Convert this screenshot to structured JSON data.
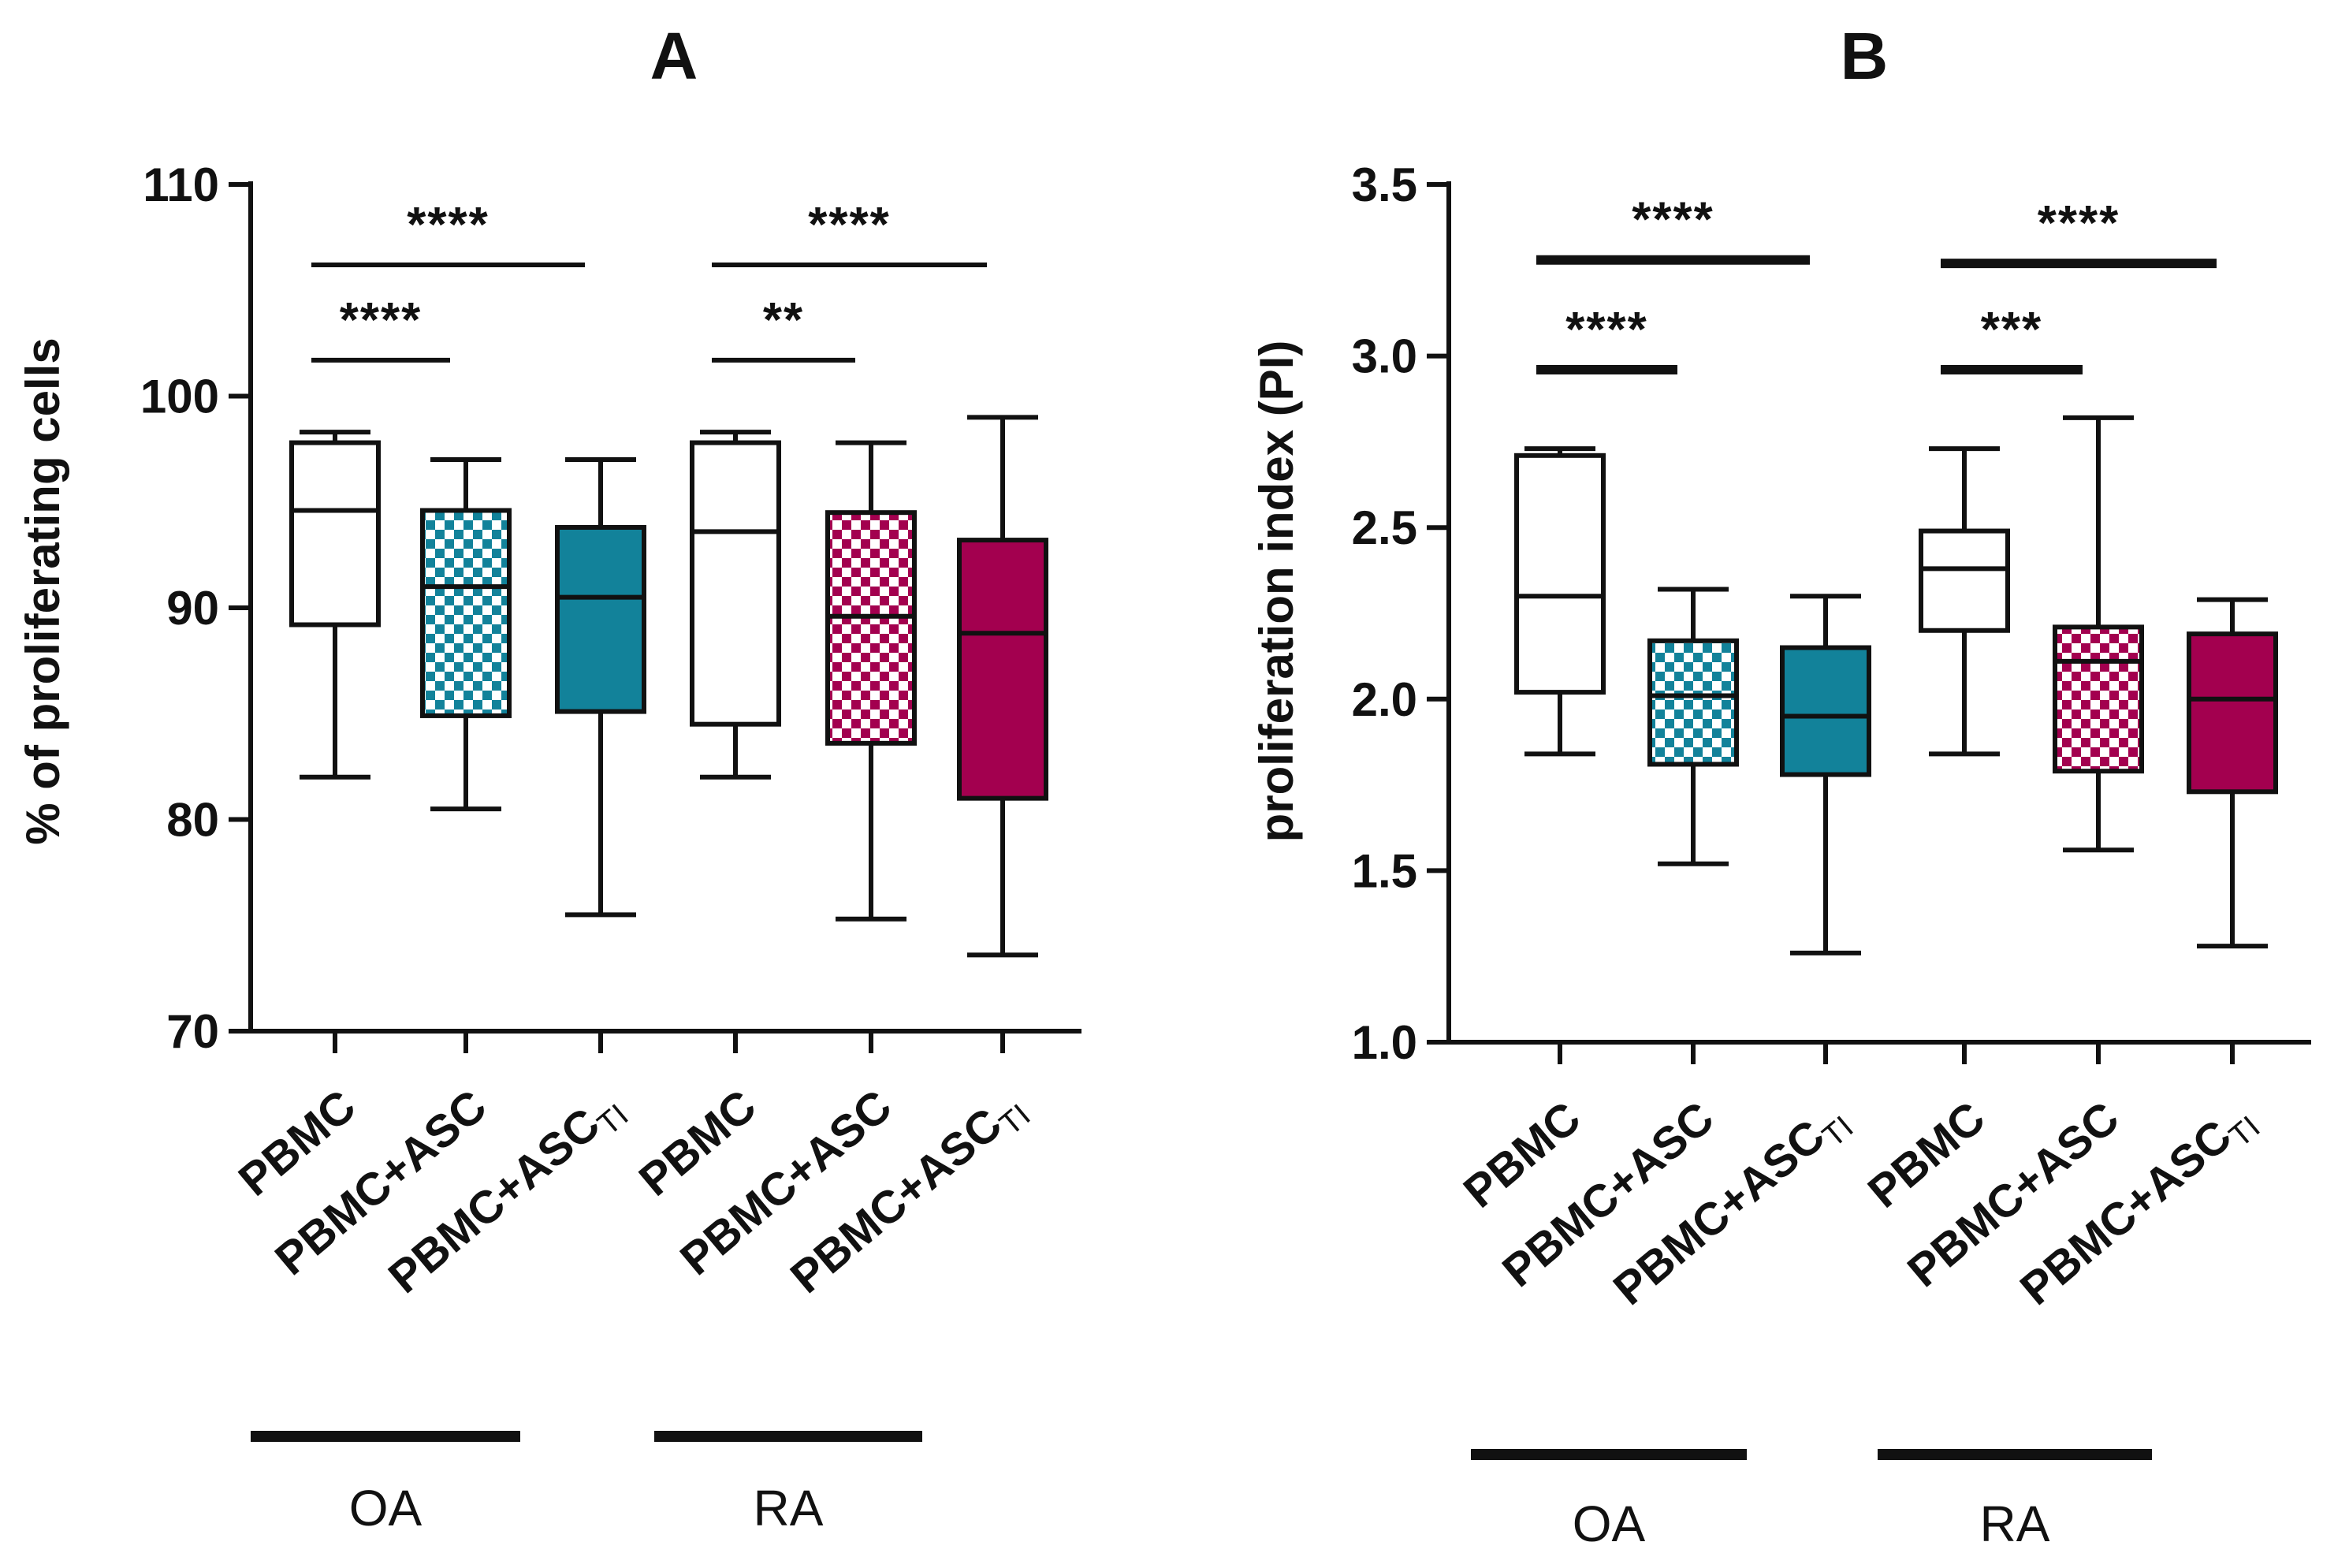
{
  "colors": {
    "oa_accent": "#12829a",
    "ra_accent": "#a3004f",
    "outline": "#111111",
    "background": "#ffffff"
  },
  "chart_data": [
    {
      "type": "boxplot",
      "title": "A",
      "xlabel": "",
      "ylabel": "% of proliferating cells",
      "ylim": [
        70,
        110
      ],
      "yticks": [
        "70",
        "80",
        "90",
        "100",
        "110"
      ],
      "grid": false,
      "categories": [
        {
          "main": "PBMC",
          "sub": "",
          "group": "OA",
          "fill": "none"
        },
        {
          "main": "PBMC+ASC",
          "sub": "",
          "group": "OA",
          "fill": "checker"
        },
        {
          "main": "PBMC+ASC",
          "sub": "TI",
          "group": "OA",
          "fill": "solid"
        },
        {
          "main": "PBMC",
          "sub": "",
          "group": "RA",
          "fill": "none"
        },
        {
          "main": "PBMC+ASC",
          "sub": "",
          "group": "RA",
          "fill": "checker"
        },
        {
          "main": "PBMC+ASC",
          "sub": "TI",
          "group": "RA",
          "fill": "solid"
        }
      ],
      "boxes": [
        {
          "min": 82.0,
          "q1": 89.2,
          "median": 94.6,
          "q3": 97.8,
          "max": 98.3
        },
        {
          "min": 80.5,
          "q1": 84.9,
          "median": 91.0,
          "q3": 94.6,
          "max": 97.0
        },
        {
          "min": 75.5,
          "q1": 85.1,
          "median": 90.5,
          "q3": 93.8,
          "max": 97.0
        },
        {
          "min": 82.0,
          "q1": 84.5,
          "median": 93.6,
          "q3": 97.8,
          "max": 98.3
        },
        {
          "min": 75.3,
          "q1": 83.6,
          "median": 89.6,
          "q3": 94.5,
          "max": 97.8
        },
        {
          "min": 73.6,
          "q1": 81.0,
          "median": 88.8,
          "q3": 93.2,
          "max": 99.0
        }
      ],
      "groups": [
        "OA",
        "RA"
      ],
      "significance": [
        {
          "from": 0,
          "to": 2,
          "label": "****",
          "y": 106.2
        },
        {
          "from": 0,
          "to": 1,
          "label": "****",
          "y": 101.7
        },
        {
          "from": 3,
          "to": 5,
          "label": "****",
          "y": 106.2
        },
        {
          "from": 3,
          "to": 4,
          "label": "**",
          "y": 101.7
        }
      ]
    },
    {
      "type": "boxplot",
      "title": "B",
      "xlabel": "",
      "ylabel": "proliferation index (PI)",
      "ylim": [
        1.0,
        3.5
      ],
      "yticks": [
        "1.0",
        "1.5",
        "2.0",
        "2.5",
        "3.0",
        "3.5"
      ],
      "grid": false,
      "categories": [
        {
          "main": "PBMC",
          "sub": "",
          "group": "OA",
          "fill": "none"
        },
        {
          "main": "PBMC+ASC",
          "sub": "",
          "group": "OA",
          "fill": "checker"
        },
        {
          "main": "PBMC+ASC",
          "sub": "TI",
          "group": "OA",
          "fill": "solid"
        },
        {
          "main": "PBMC",
          "sub": "",
          "group": "RA",
          "fill": "none"
        },
        {
          "main": "PBMC+ASC",
          "sub": "",
          "group": "RA",
          "fill": "checker"
        },
        {
          "main": "PBMC+ASC",
          "sub": "TI",
          "group": "RA",
          "fill": "solid"
        }
      ],
      "boxes": [
        {
          "min": 1.84,
          "q1": 2.02,
          "median": 2.3,
          "q3": 2.71,
          "max": 2.73
        },
        {
          "min": 1.52,
          "q1": 1.81,
          "median": 2.01,
          "q3": 2.17,
          "max": 2.32
        },
        {
          "min": 1.26,
          "q1": 1.78,
          "median": 1.95,
          "q3": 2.15,
          "max": 2.3
        },
        {
          "min": 1.84,
          "q1": 2.2,
          "median": 2.38,
          "q3": 2.49,
          "max": 2.73
        },
        {
          "min": 1.56,
          "q1": 1.79,
          "median": 2.11,
          "q3": 2.21,
          "max": 2.82
        },
        {
          "min": 1.28,
          "q1": 1.73,
          "median": 2.0,
          "q3": 2.19,
          "max": 2.29
        }
      ],
      "groups": [
        "OA",
        "RA"
      ],
      "significance": [
        {
          "from": 0,
          "to": 2,
          "label": "****",
          "y": 3.28
        },
        {
          "from": 0,
          "to": 1,
          "label": "****",
          "y": 2.96
        },
        {
          "from": 3,
          "to": 5,
          "label": "****",
          "y": 3.27
        },
        {
          "from": 3,
          "to": 4,
          "label": "***",
          "y": 2.96
        }
      ]
    }
  ]
}
